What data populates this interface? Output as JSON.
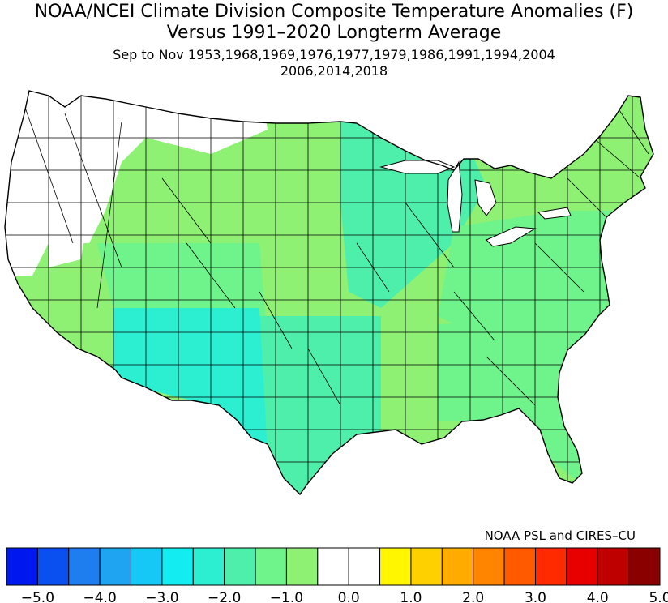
{
  "title": {
    "line1": "NOAA/NCEI Climate Division Composite Temperature Anomalies (F)",
    "line2": "Versus 1991–2020 Longterm Average",
    "line3": "Sep to Nov  1953,1968,1969,1976,1977,1979,1986,1991,1994,2004",
    "line4": "2006,2014,2018"
  },
  "credit": "NOAA PSL and CIRES–CU",
  "colorbar": {
    "colors": [
      "#0018f0",
      "#0a4ff0",
      "#1e7ef0",
      "#1ea4f0",
      "#16c8f5",
      "#13ecf0",
      "#2ceed0",
      "#4eefab",
      "#6ff38b",
      "#8ef173",
      "#ffffff",
      "#ffffff",
      "#fff600",
      "#ffd000",
      "#ffab00",
      "#ff8400",
      "#ff5a00",
      "#ff2a00",
      "#e80000",
      "#be0000",
      "#8a0000"
    ],
    "tick_labels": [
      "−5.0",
      "−4.0",
      "−3.0",
      "−2.0",
      "−1.0",
      "0.0",
      "1.0",
      "2.0",
      "3.0",
      "4.0",
      "5.0"
    ]
  },
  "regions": [
    {
      "name": "Northwest (WA/OR/ID/MT west)",
      "anomaly_f": 0.0,
      "color": "#ffffff"
    },
    {
      "name": "Northern Plains / Great Plains / Northwest interior",
      "anomaly_f": -0.8,
      "color": "#8ef173"
    },
    {
      "name": "California / Great Basin",
      "anomaly_f": -1.0,
      "color": "#8ef173"
    },
    {
      "name": "Central West / Colorado / Utah",
      "anomaly_f": -1.2,
      "color": "#6ff38b"
    },
    {
      "name": "Upper Midwest / Great Lakes",
      "anomaly_f": -1.7,
      "color": "#4eefab"
    },
    {
      "name": "Arizona / New Mexico / West Texas",
      "anomaly_f": -2.2,
      "color": "#2ceed0"
    },
    {
      "name": "Texas / Oklahoma / Southern Plains",
      "anomaly_f": -1.7,
      "color": "#4eefab"
    },
    {
      "name": "Ohio Valley / Appalachia / Mid-Atlantic",
      "anomaly_f": -1.3,
      "color": "#6ff38b"
    },
    {
      "name": "Southeast / Florida",
      "anomaly_f": -1.3,
      "color": "#6ff38b"
    },
    {
      "name": "Lower Mississippi Valley",
      "anomaly_f": -0.8,
      "color": "#8ef173"
    },
    {
      "name": "Northeast / New England",
      "anomaly_f": -0.8,
      "color": "#8ef173"
    }
  ]
}
